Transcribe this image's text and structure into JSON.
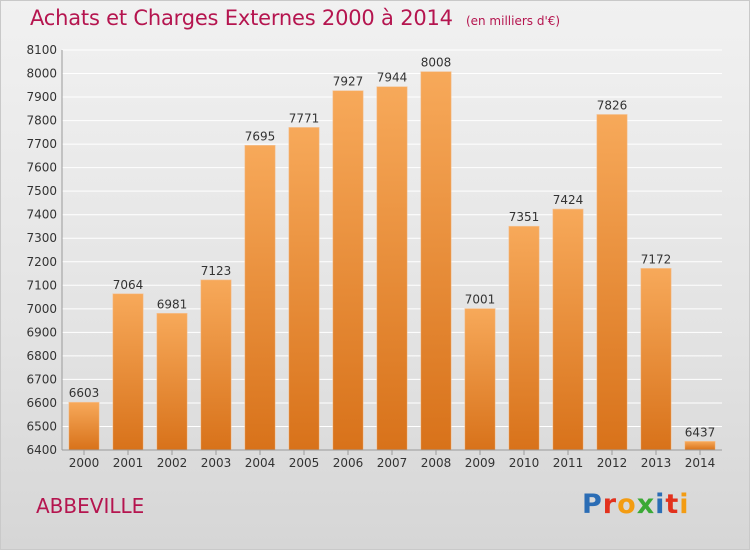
{
  "title": {
    "main": "Achats et Charges Externes 2000 à 2014",
    "sub": "(en milliers d'€)"
  },
  "commune": "ABBEVILLE",
  "logo": {
    "text": "Proxiti",
    "letters": [
      {
        "ch": "P",
        "color": "#2b6db5"
      },
      {
        "ch": "r",
        "color": "#e2311d"
      },
      {
        "ch": "o",
        "color": "#f39c12"
      },
      {
        "ch": "x",
        "color": "#3aa935"
      },
      {
        "ch": "i",
        "color": "#2b6db5"
      },
      {
        "ch": "t",
        "color": "#e2311d"
      },
      {
        "ch": "i",
        "color": "#f39c12"
      }
    ]
  },
  "colors": {
    "title": "#b5154f",
    "bar_light": "#f7a95a",
    "bar_dark": "#d8721a",
    "grid": "#ffffff",
    "axis_text": "#333333"
  },
  "chart_data": {
    "type": "bar",
    "categories": [
      "2000",
      "2001",
      "2002",
      "2003",
      "2004",
      "2005",
      "2006",
      "2007",
      "2008",
      "2009",
      "2010",
      "2011",
      "2012",
      "2013",
      "2014"
    ],
    "values": [
      6603,
      7064,
      6981,
      7123,
      7695,
      7771,
      7927,
      7944,
      8008,
      7001,
      7351,
      7424,
      7826,
      7172,
      6437
    ],
    "ylim": [
      6400,
      8100
    ],
    "yticks": [
      6400,
      6500,
      6600,
      6700,
      6800,
      6900,
      7000,
      7100,
      7200,
      7300,
      7400,
      7500,
      7600,
      7700,
      7800,
      7900,
      8000,
      8100
    ],
    "grid": true,
    "data_labels": true
  }
}
